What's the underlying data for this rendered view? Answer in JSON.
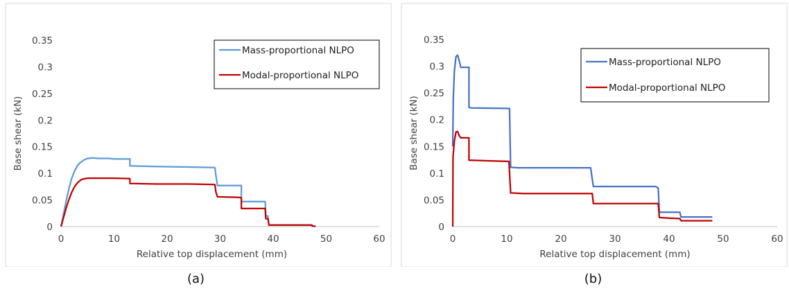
{
  "chart_data": [
    {
      "type": "line",
      "caption": "(a)",
      "xlabel": "Relative top displacement (mm)",
      "ylabel": "Base shear (kN)",
      "xlim": [
        0,
        60
      ],
      "ylim": [
        0,
        0.35
      ],
      "xticks": [
        "0",
        "10",
        "20",
        "30",
        "40",
        "50",
        "60"
      ],
      "yticks": [
        "0",
        "0.05",
        "0.1",
        "0.15",
        "0.2",
        "0.25",
        "0.3",
        "0.35"
      ],
      "grid": false,
      "legend_position": "top-right",
      "series": [
        {
          "name": "Mass-proportional NLPO",
          "color": "#5B9BD5",
          "points": [
            [
              0,
              0
            ],
            [
              0.5,
              0.025
            ],
            [
              1,
              0.05
            ],
            [
              1.5,
              0.072
            ],
            [
              2,
              0.09
            ],
            [
              2.5,
              0.103
            ],
            [
              3,
              0.113
            ],
            [
              3.5,
              0.119
            ],
            [
              4,
              0.123
            ],
            [
              4.5,
              0.126
            ],
            [
              5,
              0.128
            ],
            [
              6,
              0.129
            ],
            [
              7,
              0.128
            ],
            [
              9,
              0.128
            ],
            [
              10,
              0.127
            ],
            [
              13,
              0.127
            ],
            [
              13,
              0.114
            ],
            [
              18,
              0.113
            ],
            [
              23,
              0.112
            ],
            [
              29,
              0.111
            ],
            [
              29.2,
              0.096
            ],
            [
              29.5,
              0.077
            ],
            [
              34,
              0.077
            ],
            [
              34,
              0.047
            ],
            [
              38.5,
              0.047
            ],
            [
              38.6,
              0.02
            ],
            [
              39,
              0.02
            ],
            [
              39.2,
              0.003
            ],
            [
              40,
              0.003
            ],
            [
              47,
              0.003
            ],
            [
              47.5,
              0.001
            ],
            [
              48,
              0.0005
            ]
          ]
        },
        {
          "name": "Modal-proportional NLPO",
          "color": "#C00000",
          "points": [
            [
              0,
              0
            ],
            [
              0.5,
              0.018
            ],
            [
              1,
              0.036
            ],
            [
              1.5,
              0.051
            ],
            [
              2,
              0.064
            ],
            [
              2.5,
              0.074
            ],
            [
              3,
              0.081
            ],
            [
              3.5,
              0.086
            ],
            [
              4,
              0.089
            ],
            [
              5,
              0.091
            ],
            [
              7,
              0.091
            ],
            [
              10,
              0.091
            ],
            [
              13,
              0.09
            ],
            [
              13,
              0.081
            ],
            [
              18,
              0.08
            ],
            [
              24,
              0.08
            ],
            [
              29,
              0.079
            ],
            [
              29.2,
              0.065
            ],
            [
              29.5,
              0.056
            ],
            [
              33.5,
              0.055
            ],
            [
              34,
              0.054
            ],
            [
              34,
              0.034
            ],
            [
              38.5,
              0.034
            ],
            [
              38.6,
              0.015
            ],
            [
              39,
              0.015
            ],
            [
              39.2,
              0.003
            ],
            [
              40,
              0.003
            ],
            [
              47.3,
              0.003
            ],
            [
              47.4,
              0.001
            ],
            [
              48,
              0.0005
            ]
          ]
        }
      ]
    },
    {
      "type": "line",
      "caption": "(b)",
      "xlabel": "Relative top displacement (mm)",
      "ylabel": "Base shear (kN)",
      "xlim": [
        0,
        60
      ],
      "ylim": [
        0,
        0.35
      ],
      "xticks": [
        "0",
        "10",
        "20",
        "30",
        "40",
        "50",
        "60"
      ],
      "yticks": [
        "0",
        "0.05",
        "0.1",
        "0.15",
        "0.2",
        "0.25",
        "0.3",
        "0.35"
      ],
      "grid": false,
      "legend_position": "top-right",
      "series": [
        {
          "name": "Mass-proportional NLPO",
          "color": "#4472C4",
          "points": [
            [
              0,
              0.15
            ],
            [
              0.1,
              0.24
            ],
            [
              0.3,
              0.29
            ],
            [
              0.6,
              0.318
            ],
            [
              0.9,
              0.321
            ],
            [
              1.2,
              0.31
            ],
            [
              1.5,
              0.298
            ],
            [
              3,
              0.298
            ],
            [
              3,
              0.223
            ],
            [
              3.5,
              0.222
            ],
            [
              10.5,
              0.221
            ],
            [
              10.7,
              0.111
            ],
            [
              12,
              0.11
            ],
            [
              25.5,
              0.11
            ],
            [
              26,
              0.075
            ],
            [
              37.5,
              0.075
            ],
            [
              38,
              0.072
            ],
            [
              38.2,
              0.027
            ],
            [
              42,
              0.027
            ],
            [
              42.2,
              0.018
            ],
            [
              48,
              0.018
            ]
          ]
        },
        {
          "name": "Modal-proportional NLPO",
          "color": "#C00000",
          "points": [
            [
              0,
              0
            ],
            [
              0.05,
              0.13
            ],
            [
              0.3,
              0.16
            ],
            [
              0.6,
              0.177
            ],
            [
              0.9,
              0.178
            ],
            [
              1.2,
              0.17
            ],
            [
              1.5,
              0.166
            ],
            [
              3,
              0.166
            ],
            [
              3,
              0.124
            ],
            [
              3.5,
              0.124
            ],
            [
              7,
              0.123
            ],
            [
              10.4,
              0.122
            ],
            [
              10.7,
              0.063
            ],
            [
              13,
              0.062
            ],
            [
              25.8,
              0.062
            ],
            [
              26,
              0.043
            ],
            [
              38,
              0.043
            ],
            [
              38.2,
              0.017
            ],
            [
              40,
              0.016
            ],
            [
              42,
              0.015
            ],
            [
              42.2,
              0.011
            ],
            [
              48,
              0.011
            ]
          ]
        }
      ]
    }
  ]
}
